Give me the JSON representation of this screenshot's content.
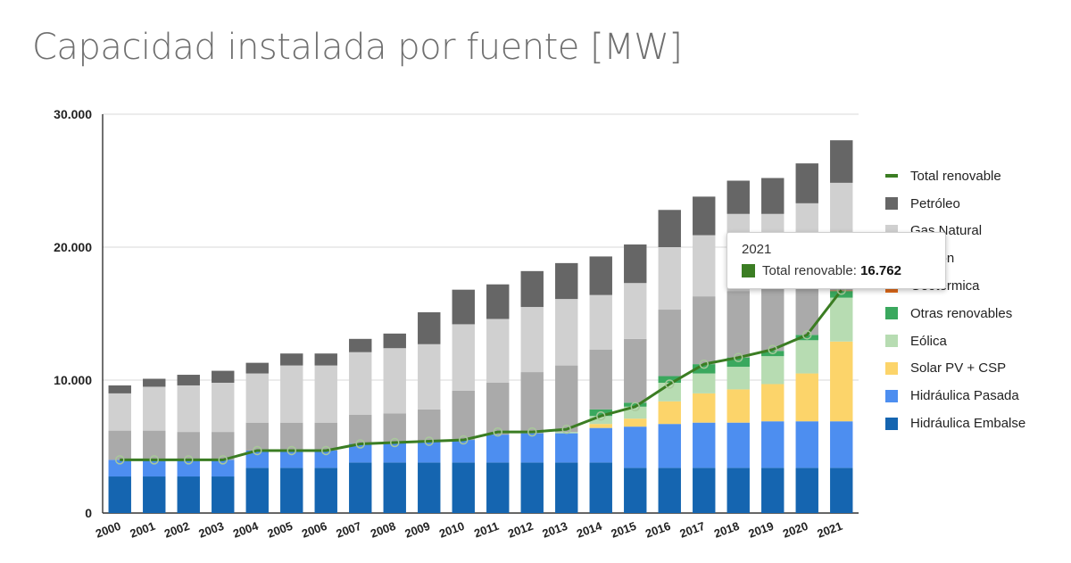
{
  "page": {
    "title": "Capacidad instalada por fuente [MW]"
  },
  "chart_data": {
    "type": "bar",
    "stacked": true,
    "title": "",
    "xlabel": "",
    "ylabel": "",
    "ylim": [
      0,
      30000
    ],
    "y_ticks": [
      0,
      10000,
      20000,
      30000
    ],
    "y_tick_labels": [
      "0",
      "10.000",
      "20.000",
      "30.000"
    ],
    "grid": true,
    "legend_position": "right",
    "categories": [
      "2000",
      "2001",
      "2002",
      "2003",
      "2004",
      "2005",
      "2006",
      "2007",
      "2008",
      "2009",
      "2010",
      "2011",
      "2012",
      "2013",
      "2014",
      "2015",
      "2016",
      "2017",
      "2018",
      "2019",
      "2020",
      "2021"
    ],
    "series": [
      {
        "name": "Hidráulica Embalse",
        "color": "#1565b0",
        "values": [
          2750,
          2750,
          2750,
          2750,
          3400,
          3400,
          3400,
          3800,
          3800,
          3800,
          3800,
          3800,
          3800,
          3800,
          3800,
          3400,
          3400,
          3400,
          3400,
          3400,
          3400,
          3400
        ]
      },
      {
        "name": "Hidráulica Pasada",
        "color": "#4d8ef0",
        "values": [
          1250,
          1250,
          1250,
          1250,
          1300,
          1300,
          1300,
          1400,
          1500,
          1600,
          1700,
          2100,
          2200,
          2200,
          2600,
          3100,
          3300,
          3400,
          3400,
          3500,
          3500,
          3500
        ]
      },
      {
        "name": "Solar PV + CSP",
        "color": "#fcd46a",
        "values": [
          0,
          0,
          0,
          0,
          0,
          0,
          0,
          0,
          0,
          0,
          0,
          0,
          0,
          0,
          300,
          600,
          1700,
          2200,
          2500,
          2800,
          3600,
          6000
        ]
      },
      {
        "name": "Eólica",
        "color": "#b7dcb2",
        "values": [
          0,
          0,
          0,
          0,
          0,
          0,
          0,
          0,
          0,
          0,
          0,
          0,
          0,
          100,
          600,
          900,
          1400,
          1500,
          1700,
          2100,
          2500,
          3300
        ]
      },
      {
        "name": "Otras renovables",
        "color": "#3aa85e",
        "values": [
          0,
          0,
          0,
          0,
          0,
          0,
          0,
          0,
          0,
          0,
          0,
          0,
          0,
          0,
          500,
          300,
          500,
          700,
          700,
          400,
          400,
          500
        ]
      },
      {
        "name": "Geotérmica",
        "color": "#e06a1a",
        "values": [
          0,
          0,
          0,
          0,
          0,
          0,
          0,
          0,
          0,
          0,
          0,
          0,
          0,
          0,
          0,
          0,
          0,
          0,
          0,
          0,
          0,
          40
        ]
      },
      {
        "name": "Carbón",
        "color": "#aaaaaa",
        "values": [
          2200,
          2200,
          2100,
          2100,
          2100,
          2100,
          2100,
          2200,
          2200,
          2400,
          3700,
          3900,
          4600,
          5000,
          4500,
          4800,
          5000,
          5100,
          5000,
          4800,
          4100,
          3100
        ]
      },
      {
        "name": "Gas Natural",
        "color": "#d0d0d0",
        "values": [
          2800,
          3300,
          3500,
          3700,
          3700,
          4300,
          4300,
          4700,
          4900,
          4900,
          5000,
          4800,
          4900,
          5000,
          4100,
          4200,
          4700,
          4600,
          5800,
          5500,
          5800,
          5000
        ]
      },
      {
        "name": "Petróleo",
        "color": "#666666",
        "values": [
          600,
          600,
          800,
          900,
          800,
          900,
          900,
          1000,
          1100,
          2400,
          2600,
          2600,
          2700,
          2700,
          2900,
          2900,
          2800,
          2900,
          2500,
          2700,
          3000,
          3200
        ]
      }
    ],
    "line_series": {
      "name": "Total renovable",
      "color": "#3b7d23",
      "values": [
        4000,
        4000,
        4000,
        4000,
        4700,
        4700,
        4700,
        5200,
        5300,
        5400,
        5500,
        6100,
        6100,
        6300,
        7300,
        8000,
        9700,
        11200,
        11700,
        12300,
        13400,
        16762
      ]
    },
    "tooltip": {
      "category": "2021",
      "series": "Total renovable",
      "label": "Total renovable",
      "value_text": "16.762",
      "color": "#3b7d23"
    },
    "legend": [
      {
        "name": "Total renovable",
        "color": "#3b7d23",
        "kind": "line"
      },
      {
        "name": "Petróleo",
        "color": "#666666",
        "kind": "box"
      },
      {
        "name": "Gas Natural",
        "color": "#d0d0d0",
        "kind": "box"
      },
      {
        "name": "Carbón",
        "color": "#aaaaaa",
        "kind": "box"
      },
      {
        "name": "Geotérmica",
        "color": "#e06a1a",
        "kind": "box"
      },
      {
        "name": "Otras renovables",
        "color": "#3aa85e",
        "kind": "box"
      },
      {
        "name": "Eólica",
        "color": "#b7dcb2",
        "kind": "box"
      },
      {
        "name": "Solar PV + CSP",
        "color": "#fcd46a",
        "kind": "box"
      },
      {
        "name": "Hidráulica Pasada",
        "color": "#4d8ef0",
        "kind": "box"
      },
      {
        "name": "Hidráulica Embalse",
        "color": "#1565b0",
        "kind": "box"
      }
    ]
  }
}
